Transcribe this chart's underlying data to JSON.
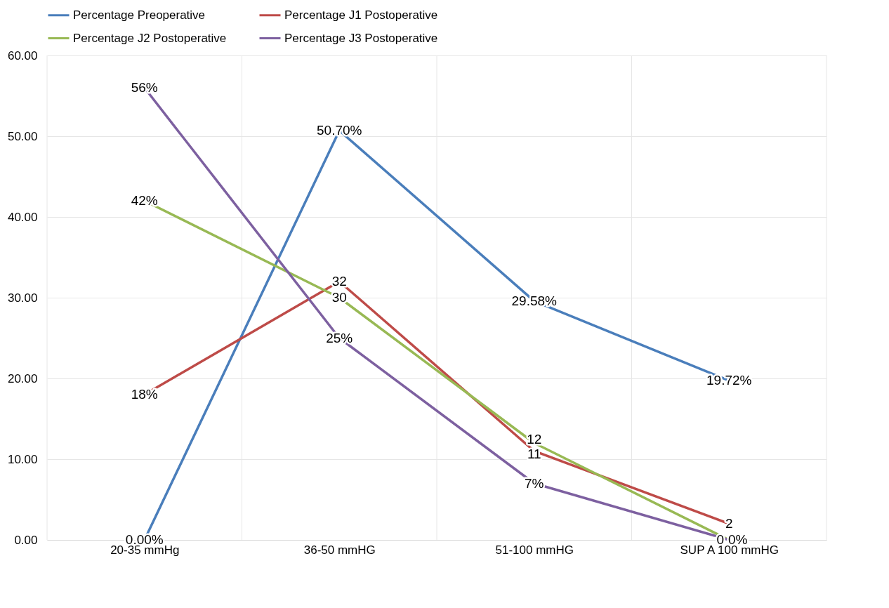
{
  "chart_data": {
    "type": "line",
    "categories": [
      "20-35 mmHg",
      "36-50 mmHG",
      "51-100 mmHG",
      "SUP A 100 mmHG"
    ],
    "series": [
      {
        "name": "Percentage Preoperative",
        "color": "#4a7ebb",
        "values": [
          0,
          50.7,
          29.58,
          19.72
        ],
        "value_labels": [
          "0.00%",
          "50.70%",
          "29.58%",
          "19.72%"
        ]
      },
      {
        "name": "Percentage J1 Postoperative",
        "color": "#be4b48",
        "values": [
          18,
          32,
          11,
          2
        ],
        "value_labels": [
          "18%",
          "32",
          "11",
          "2"
        ]
      },
      {
        "name": "Percentage J2 Postoperative",
        "color": "#98b954",
        "values": [
          42,
          30,
          12,
          0
        ],
        "value_labels": [
          "42%",
          "30",
          "12",
          "0"
        ]
      },
      {
        "name": "Percentage J3 Postoperative",
        "color": "#7d60a0",
        "values": [
          56,
          25,
          7,
          0
        ],
        "value_labels": [
          "56%",
          "25%",
          "7%",
          "0%"
        ]
      }
    ],
    "ylim": [
      0,
      60
    ],
    "yticks": [
      {
        "value": 0,
        "label": "0.00"
      },
      {
        "value": 10,
        "label": "10.00"
      },
      {
        "value": 20,
        "label": "20.00"
      },
      {
        "value": 30,
        "label": "30.00"
      },
      {
        "value": 40,
        "label": "40.00"
      },
      {
        "value": 50,
        "label": "50.00"
      },
      {
        "value": 60,
        "label": "60.00"
      }
    ],
    "grid": true,
    "legend": "top",
    "line_style": "solid",
    "marker": "none"
  }
}
